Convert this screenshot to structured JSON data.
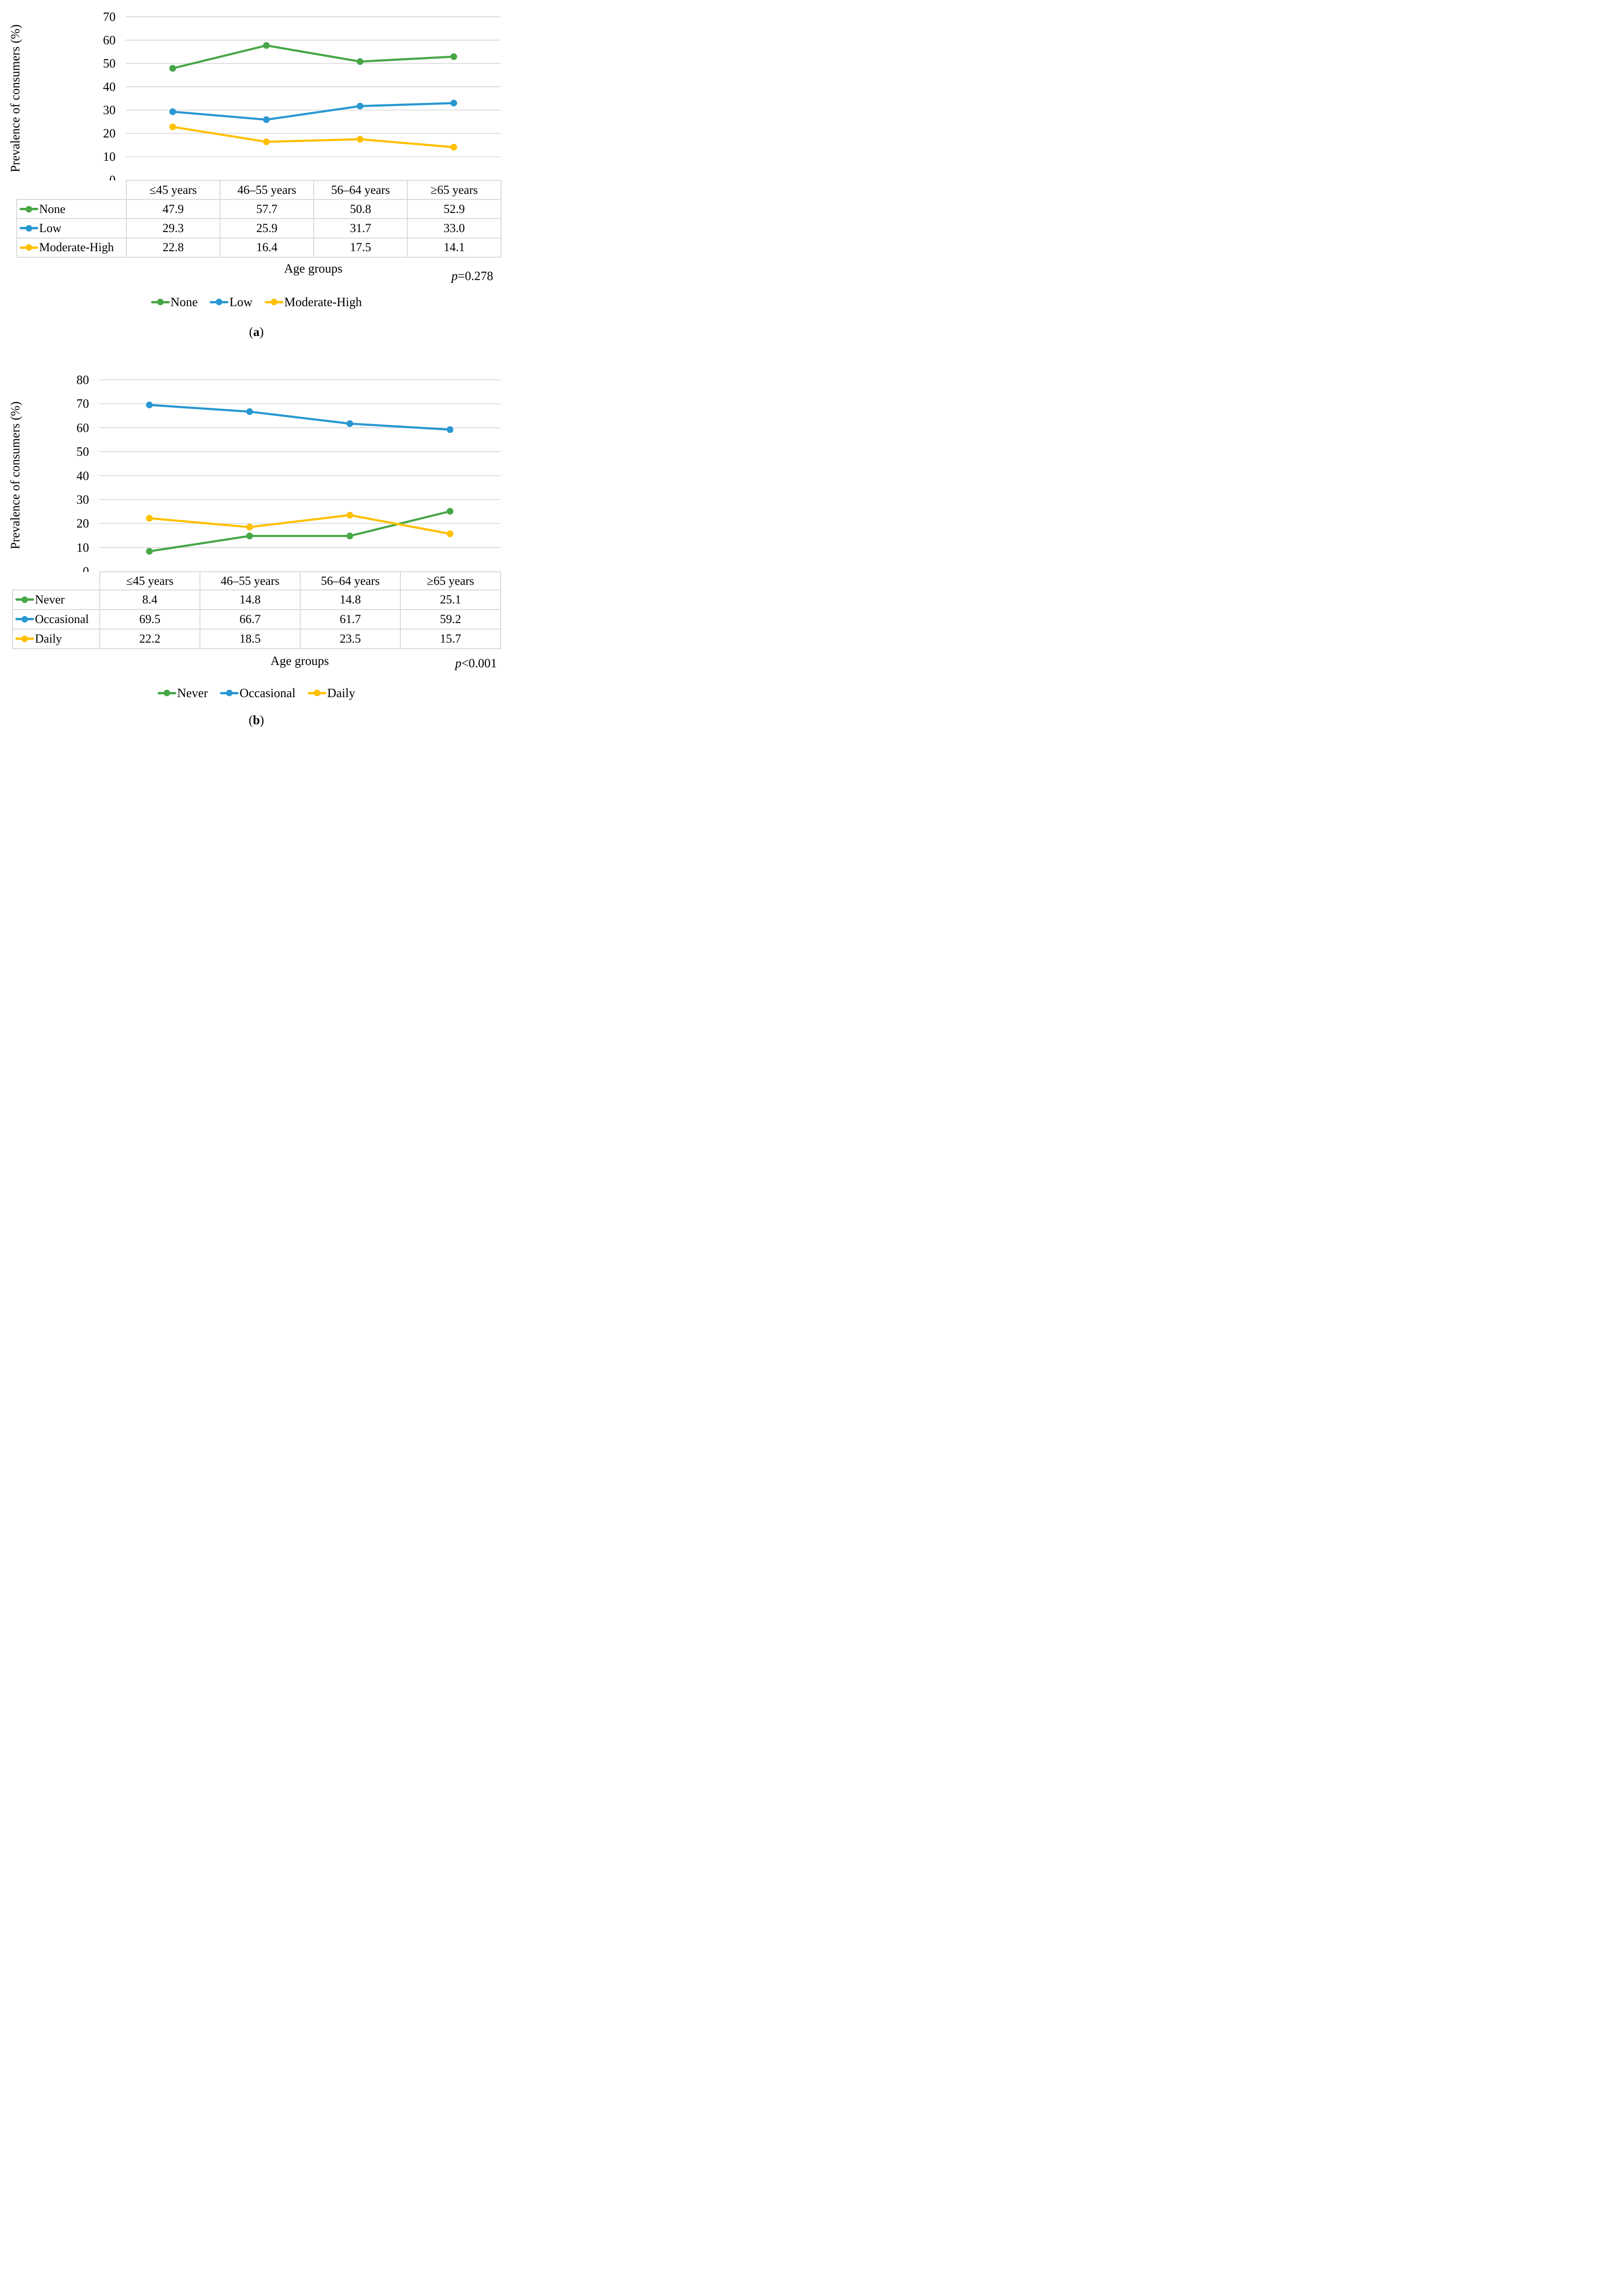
{
  "chart_data": [
    {
      "type": "line",
      "panel": "a",
      "title": "",
      "categories": [
        "≤45 years",
        "46–55 years",
        "56–64 years",
        "≥65 years"
      ],
      "series": [
        {
          "name": "None",
          "color": "#47A747",
          "values": [
            47.9,
            57.7,
            50.8,
            52.9
          ]
        },
        {
          "name": "Low",
          "color": "#2998D2",
          "values": [
            29.3,
            25.9,
            31.7,
            33.0
          ]
        },
        {
          "name": "Moderate-High",
          "color": "#FFC000",
          "values": [
            22.8,
            16.4,
            17.5,
            14.1
          ]
        }
      ],
      "ylabel": "Prevalence of consumers (%)",
      "xlabel": "Age groups",
      "ylim": [
        0,
        70
      ],
      "yticks": [
        0,
        10,
        20,
        30,
        40,
        50,
        60,
        70
      ],
      "grid": true,
      "grid_color": "#D9D9D9",
      "legend_position": "bottom",
      "data_table": true,
      "p_prefix": "p",
      "p_rest": "=0.278",
      "caption_open": "(",
      "caption_letter": "a",
      "caption_close": ")"
    },
    {
      "type": "line",
      "panel": "b",
      "title": "",
      "categories": [
        "≤45 years",
        "46–55 years",
        "56–64 years",
        "≥65 years"
      ],
      "series": [
        {
          "name": "Never",
          "color": "#47A747",
          "values": [
            8.4,
            14.8,
            14.8,
            25.1
          ]
        },
        {
          "name": "Occasional",
          "color": "#2998D2",
          "values": [
            69.5,
            66.7,
            61.7,
            59.2
          ]
        },
        {
          "name": "Daily",
          "color": "#FFC000",
          "values": [
            22.2,
            18.5,
            23.5,
            15.7
          ]
        }
      ],
      "ylabel": "Prevalence of consumers (%)",
      "xlabel": "Age groups",
      "ylim": [
        0,
        80
      ],
      "yticks": [
        0,
        10,
        20,
        30,
        40,
        50,
        60,
        70,
        80
      ],
      "grid": true,
      "grid_color": "#D9D9D9",
      "legend_position": "bottom",
      "data_table": true,
      "p_prefix": "p",
      "p_rest": "<0.001",
      "caption_open": "(",
      "caption_letter": "b",
      "caption_close": ")"
    }
  ]
}
